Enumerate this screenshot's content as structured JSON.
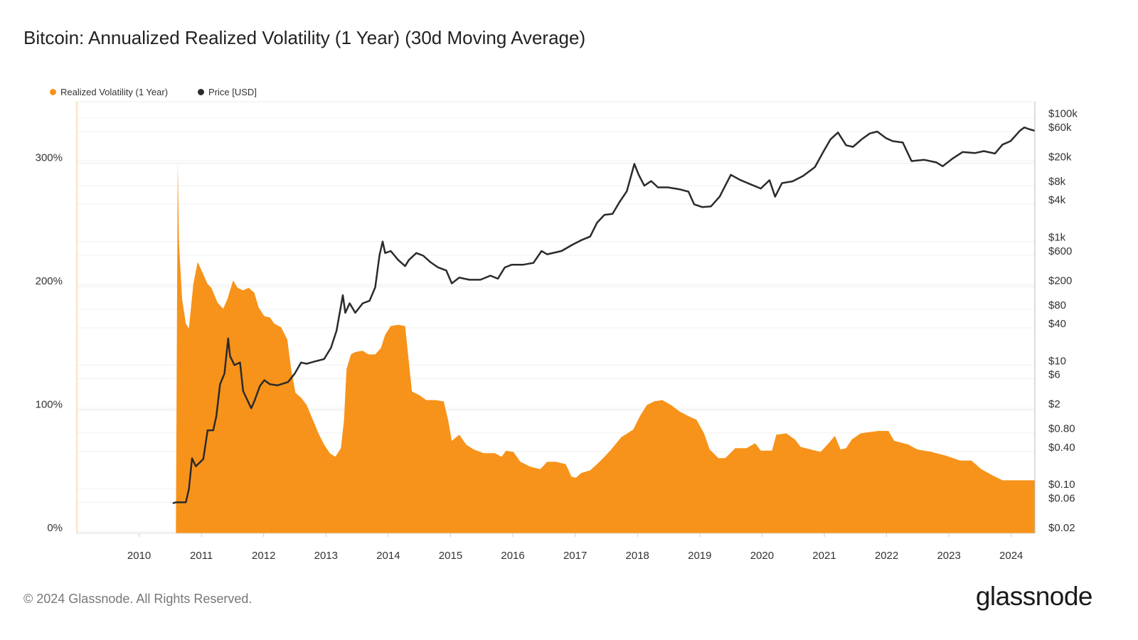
{
  "title": "Bitcoin: Annualized Realized Volatility (1 Year) (30d Moving Average)",
  "footer": "© 2024 Glassnode. All Rights Reserved.",
  "logo": "glassnode",
  "colors": {
    "volatility": "#f7931a",
    "price": "#2b2b2b"
  },
  "chart_data": {
    "type": "area",
    "title": "Bitcoin: Annualized Realized Volatility (1 Year) (30d Moving Average)",
    "legend": [
      "Realized Volatility (1 Year)",
      "Price [USD]"
    ],
    "legend_position": "top-left",
    "grid": true,
    "x_ticks": [
      "2010",
      "2011",
      "2012",
      "2013",
      "2014",
      "2015",
      "2016",
      "2017",
      "2018",
      "2019",
      "2020",
      "2021",
      "2022",
      "2023",
      "2024"
    ],
    "xlim": [
      2009.0,
      2024.38
    ],
    "y_left": {
      "ticks": [
        "0%",
        "100%",
        "200%",
        "300%"
      ],
      "range": [
        0,
        350
      ],
      "unit": "%"
    },
    "y_right": {
      "scale": "log",
      "ticks": [
        "$0.02",
        "$0.06",
        "$0.10",
        "$0.40",
        "$0.80",
        "$2",
        "$6",
        "$10",
        "$40",
        "$80",
        "$200",
        "$600",
        "$1k",
        "$4k",
        "$8k",
        "$20k",
        "$60k",
        "$100k"
      ],
      "tick_values": [
        0.02,
        0.06,
        0.1,
        0.4,
        0.8,
        2,
        6,
        10,
        40,
        80,
        200,
        600,
        1000,
        4000,
        8000,
        20000,
        60000,
        100000
      ],
      "range": [
        0.02,
        100000
      ]
    },
    "series": [
      {
        "name": "Realized Volatility (1 Year)",
        "type": "area",
        "axis": "left",
        "points": [
          [
            2010.59,
            0
          ],
          [
            2010.62,
            301
          ],
          [
            2010.64,
            236
          ],
          [
            2010.69,
            190
          ],
          [
            2010.75,
            170
          ],
          [
            2010.8,
            166
          ],
          [
            2010.87,
            202
          ],
          [
            2010.94,
            220
          ],
          [
            2011.03,
            210
          ],
          [
            2011.1,
            202
          ],
          [
            2011.16,
            199
          ],
          [
            2011.26,
            187
          ],
          [
            2011.35,
            182
          ],
          [
            2011.42,
            190
          ],
          [
            2011.51,
            205
          ],
          [
            2011.58,
            199
          ],
          [
            2011.67,
            197
          ],
          [
            2011.76,
            199
          ],
          [
            2011.85,
            195
          ],
          [
            2011.92,
            183
          ],
          [
            2012.01,
            176
          ],
          [
            2012.1,
            175
          ],
          [
            2012.17,
            170
          ],
          [
            2012.28,
            167
          ],
          [
            2012.38,
            157
          ],
          [
            2012.44,
            133
          ],
          [
            2012.51,
            114
          ],
          [
            2012.6,
            110
          ],
          [
            2012.69,
            104
          ],
          [
            2012.79,
            92
          ],
          [
            2012.88,
            81
          ],
          [
            2012.97,
            72
          ],
          [
            2013.06,
            65
          ],
          [
            2013.15,
            62
          ],
          [
            2013.24,
            69
          ],
          [
            2013.29,
            92
          ],
          [
            2013.33,
            133
          ],
          [
            2013.4,
            145
          ],
          [
            2013.47,
            147
          ],
          [
            2013.59,
            148
          ],
          [
            2013.68,
            145
          ],
          [
            2013.79,
            145
          ],
          [
            2013.88,
            150
          ],
          [
            2013.95,
            161
          ],
          [
            2014.04,
            168
          ],
          [
            2014.16,
            169
          ],
          [
            2014.27,
            168
          ],
          [
            2014.32,
            144
          ],
          [
            2014.38,
            115
          ],
          [
            2014.5,
            112
          ],
          [
            2014.61,
            108
          ],
          [
            2014.75,
            108
          ],
          [
            2014.89,
            107
          ],
          [
            2014.96,
            92
          ],
          [
            2015.02,
            75
          ],
          [
            2015.14,
            80
          ],
          [
            2015.25,
            72
          ],
          [
            2015.37,
            68
          ],
          [
            2015.53,
            65
          ],
          [
            2015.71,
            65
          ],
          [
            2015.82,
            62
          ],
          [
            2015.89,
            67
          ],
          [
            2016.01,
            66
          ],
          [
            2016.12,
            58
          ],
          [
            2016.28,
            54
          ],
          [
            2016.44,
            52
          ],
          [
            2016.55,
            58
          ],
          [
            2016.69,
            58
          ],
          [
            2016.85,
            56
          ],
          [
            2016.94,
            46
          ],
          [
            2017.01,
            45
          ],
          [
            2017.1,
            49
          ],
          [
            2017.24,
            51
          ],
          [
            2017.35,
            56
          ],
          [
            2017.47,
            62
          ],
          [
            2017.58,
            68
          ],
          [
            2017.74,
            78
          ],
          [
            2017.93,
            84
          ],
          [
            2018.04,
            95
          ],
          [
            2018.15,
            104
          ],
          [
            2018.27,
            107
          ],
          [
            2018.4,
            108
          ],
          [
            2018.54,
            104
          ],
          [
            2018.67,
            99
          ],
          [
            2018.82,
            95
          ],
          [
            2018.95,
            92
          ],
          [
            2019.07,
            81
          ],
          [
            2019.16,
            68
          ],
          [
            2019.3,
            61
          ],
          [
            2019.41,
            61
          ],
          [
            2019.57,
            69
          ],
          [
            2019.75,
            69
          ],
          [
            2019.89,
            73
          ],
          [
            2019.98,
            67
          ],
          [
            2020.16,
            67
          ],
          [
            2020.23,
            80
          ],
          [
            2020.39,
            81
          ],
          [
            2020.53,
            76
          ],
          [
            2020.62,
            70
          ],
          [
            2020.78,
            68
          ],
          [
            2020.94,
            66
          ],
          [
            2021.05,
            72
          ],
          [
            2021.17,
            79
          ],
          [
            2021.26,
            68
          ],
          [
            2021.35,
            69
          ],
          [
            2021.44,
            76
          ],
          [
            2021.58,
            81
          ],
          [
            2021.71,
            82
          ],
          [
            2021.87,
            83
          ],
          [
            2022.03,
            83
          ],
          [
            2022.12,
            75
          ],
          [
            2022.35,
            72
          ],
          [
            2022.49,
            68
          ],
          [
            2022.72,
            66
          ],
          [
            2022.95,
            63
          ],
          [
            2023.18,
            59
          ],
          [
            2023.36,
            59
          ],
          [
            2023.52,
            52
          ],
          [
            2023.7,
            47
          ],
          [
            2023.86,
            43
          ],
          [
            2023.98,
            43
          ],
          [
            2024.21,
            43
          ],
          [
            2024.38,
            43
          ]
        ]
      },
      {
        "name": "Price [USD]",
        "type": "line",
        "axis": "right",
        "points": [
          [
            2010.54,
            0.058
          ],
          [
            2010.59,
            0.06
          ],
          [
            2010.75,
            0.06
          ],
          [
            2010.8,
            0.098
          ],
          [
            2010.85,
            0.31
          ],
          [
            2010.91,
            0.23
          ],
          [
            2011.03,
            0.3
          ],
          [
            2011.1,
            0.88
          ],
          [
            2011.19,
            0.88
          ],
          [
            2011.24,
            1.5
          ],
          [
            2011.3,
            4.9
          ],
          [
            2011.37,
            7.3
          ],
          [
            2011.43,
            27
          ],
          [
            2011.46,
            14
          ],
          [
            2011.53,
            10
          ],
          [
            2011.62,
            11
          ],
          [
            2011.67,
            3.8
          ],
          [
            2011.8,
            2.0
          ],
          [
            2011.85,
            2.6
          ],
          [
            2011.94,
            4.6
          ],
          [
            2012.01,
            5.7
          ],
          [
            2012.1,
            4.9
          ],
          [
            2012.22,
            4.7
          ],
          [
            2012.39,
            5.3
          ],
          [
            2012.5,
            7.3
          ],
          [
            2012.6,
            11
          ],
          [
            2012.69,
            10.5
          ],
          [
            2012.83,
            11.5
          ],
          [
            2012.97,
            12.5
          ],
          [
            2013.08,
            19
          ],
          [
            2013.17,
            36
          ],
          [
            2013.27,
            135
          ],
          [
            2013.31,
            70
          ],
          [
            2013.38,
            100
          ],
          [
            2013.47,
            70
          ],
          [
            2013.59,
            100
          ],
          [
            2013.7,
            110
          ],
          [
            2013.79,
            180
          ],
          [
            2013.86,
            600
          ],
          [
            2013.91,
            1000
          ],
          [
            2013.95,
            650
          ],
          [
            2014.04,
            700
          ],
          [
            2014.16,
            500
          ],
          [
            2014.27,
            400
          ],
          [
            2014.33,
            500
          ],
          [
            2014.45,
            650
          ],
          [
            2014.56,
            590
          ],
          [
            2014.68,
            460
          ],
          [
            2014.8,
            380
          ],
          [
            2014.93,
            340
          ],
          [
            2015.02,
            210
          ],
          [
            2015.14,
            260
          ],
          [
            2015.3,
            240
          ],
          [
            2015.48,
            240
          ],
          [
            2015.64,
            280
          ],
          [
            2015.76,
            250
          ],
          [
            2015.87,
            380
          ],
          [
            2015.98,
            420
          ],
          [
            2016.16,
            420
          ],
          [
            2016.33,
            450
          ],
          [
            2016.46,
            700
          ],
          [
            2016.55,
            620
          ],
          [
            2016.78,
            700
          ],
          [
            2016.97,
            900
          ],
          [
            2017.1,
            1050
          ],
          [
            2017.24,
            1200
          ],
          [
            2017.35,
            2000
          ],
          [
            2017.47,
            2700
          ],
          [
            2017.6,
            2800
          ],
          [
            2017.71,
            4300
          ],
          [
            2017.83,
            6500
          ],
          [
            2017.95,
            18000
          ],
          [
            2018.02,
            12000
          ],
          [
            2018.11,
            8000
          ],
          [
            2018.22,
            9500
          ],
          [
            2018.33,
            7500
          ],
          [
            2018.49,
            7500
          ],
          [
            2018.67,
            7000
          ],
          [
            2018.82,
            6400
          ],
          [
            2018.91,
            4000
          ],
          [
            2019.04,
            3600
          ],
          [
            2019.18,
            3700
          ],
          [
            2019.32,
            5300
          ],
          [
            2019.41,
            8000
          ],
          [
            2019.5,
            12000
          ],
          [
            2019.64,
            10000
          ],
          [
            2019.82,
            8400
          ],
          [
            2019.98,
            7200
          ],
          [
            2020.12,
            9800
          ],
          [
            2020.21,
            5300
          ],
          [
            2020.32,
            8800
          ],
          [
            2020.49,
            9400
          ],
          [
            2020.66,
            11500
          ],
          [
            2020.85,
            16000
          ],
          [
            2020.99,
            29000
          ],
          [
            2021.1,
            45000
          ],
          [
            2021.22,
            58000
          ],
          [
            2021.35,
            36000
          ],
          [
            2021.46,
            34000
          ],
          [
            2021.6,
            45000
          ],
          [
            2021.73,
            56000
          ],
          [
            2021.85,
            60000
          ],
          [
            2021.99,
            47000
          ],
          [
            2022.1,
            42000
          ],
          [
            2022.26,
            40000
          ],
          [
            2022.4,
            20000
          ],
          [
            2022.6,
            21000
          ],
          [
            2022.8,
            19000
          ],
          [
            2022.9,
            16500
          ],
          [
            2023.06,
            22000
          ],
          [
            2023.22,
            28000
          ],
          [
            2023.42,
            27000
          ],
          [
            2023.56,
            29000
          ],
          [
            2023.74,
            26500
          ],
          [
            2023.86,
            37000
          ],
          [
            2023.99,
            42000
          ],
          [
            2024.14,
            62000
          ],
          [
            2024.21,
            70000
          ],
          [
            2024.3,
            65000
          ],
          [
            2024.38,
            62000
          ]
        ]
      }
    ]
  }
}
